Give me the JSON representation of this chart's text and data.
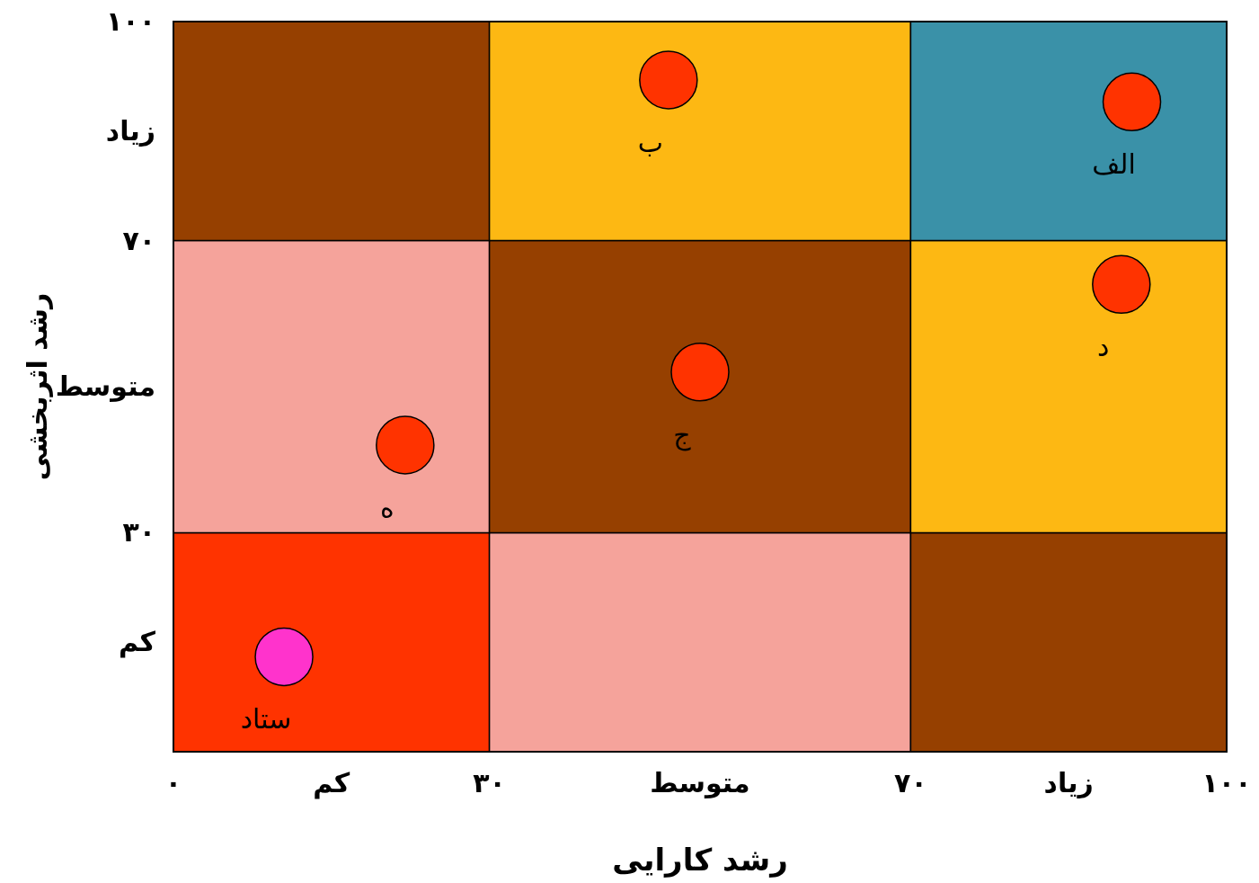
{
  "chart_data": {
    "type": "scatter",
    "xlabel": "رشد کارایی",
    "ylabel": "رشد اثربخشی",
    "xlim": [
      0,
      100
    ],
    "ylim": [
      0,
      100
    ],
    "marker": "circle",
    "xticks": [
      {
        "value": 0,
        "label": "۰"
      },
      {
        "value": 15,
        "label": "کم"
      },
      {
        "value": 30,
        "label": "۳۰"
      },
      {
        "value": 50,
        "label": "متوسط"
      },
      {
        "value": 70,
        "label": "۷۰"
      },
      {
        "value": 85,
        "label": "زیاد"
      },
      {
        "value": 100,
        "label": "۱۰۰"
      }
    ],
    "yticks": [
      {
        "value": 15,
        "label": "کم"
      },
      {
        "value": 30,
        "label": "۳۰"
      },
      {
        "value": 50,
        "label": "متوسط"
      },
      {
        "value": 70,
        "label": "۷۰"
      },
      {
        "value": 85,
        "label": "زیاد"
      },
      {
        "value": 100,
        "label": "۱۰۰"
      }
    ],
    "series": [
      {
        "name": "الف",
        "color": "#ff3300",
        "x": [
          91
        ],
        "values": [
          89
        ]
      },
      {
        "name": "ب",
        "color": "#ff3300",
        "x": [
          47
        ],
        "values": [
          92
        ]
      },
      {
        "name": "ج",
        "color": "#ff3300",
        "x": [
          50
        ],
        "values": [
          52
        ]
      },
      {
        "name": "د",
        "color": "#ff3300",
        "x": [
          90
        ],
        "values": [
          64
        ]
      },
      {
        "name": "ه",
        "color": "#ff3300",
        "x": [
          22
        ],
        "values": [
          42
        ]
      },
      {
        "name": "ستاد",
        "color": "#ff33cc",
        "x": [
          10.5
        ],
        "values": [
          13
        ]
      }
    ]
  }
}
